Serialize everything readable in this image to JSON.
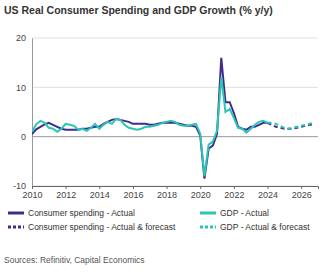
{
  "chart_data": {
    "type": "line",
    "title": "US Real Consumer Spending and GDP Growth (% y/y)",
    "source": "Sources: Refinitiv, Capital Economics",
    "x": [
      2010,
      2010.25,
      2010.5,
      2010.75,
      2011,
      2011.25,
      2011.5,
      2011.75,
      2012,
      2012.25,
      2012.5,
      2012.75,
      2013,
      2013.25,
      2013.5,
      2013.75,
      2014,
      2014.25,
      2014.5,
      2014.75,
      2015,
      2015.25,
      2015.5,
      2015.75,
      2016,
      2016.25,
      2016.5,
      2016.75,
      2017,
      2017.25,
      2017.5,
      2017.75,
      2018,
      2018.25,
      2018.5,
      2018.75,
      2019,
      2019.25,
      2019.5,
      2019.75,
      2020,
      2020.25,
      2020.5,
      2020.75,
      2021,
      2021.25,
      2021.5,
      2021.75,
      2022,
      2022.25,
      2022.5,
      2022.75,
      2023,
      2023.25,
      2023.5,
      2023.75,
      2024,
      2024.25,
      2024.5,
      2024.75,
      2025,
      2025.25,
      2025.5,
      2025.75,
      2026,
      2026.25,
      2026.5,
      2026.75
    ],
    "series": [
      {
        "name": "Consumer spending - Actual",
        "color": "#3d2c8d",
        "line_style": "solid",
        "values": [
          0.5,
          1.5,
          2.0,
          2.5,
          2.8,
          2.4,
          2.0,
          1.6,
          1.4,
          1.4,
          1.4,
          1.4,
          1.6,
          1.6,
          1.8,
          2.0,
          2.0,
          2.6,
          3.0,
          3.4,
          3.6,
          3.4,
          3.2,
          3.0,
          2.6,
          2.6,
          2.6,
          2.6,
          2.4,
          2.4,
          2.6,
          2.8,
          2.8,
          2.8,
          2.8,
          2.6,
          2.4,
          2.2,
          2.2,
          2.0,
          0.2,
          -8.5,
          -2.4,
          -1.8,
          0.6,
          16.0,
          7.0,
          7.0,
          4.8,
          2.0,
          1.6,
          1.4,
          2.0,
          2.0,
          2.4,
          2.8,
          2.8,
          null,
          null,
          null,
          null,
          null,
          null,
          null,
          null,
          null,
          null,
          null
        ]
      },
      {
        "name": "Consumer spending - Actual & forecast",
        "color": "#3d2c8d",
        "line_style": "dashed",
        "values": [
          null,
          null,
          null,
          null,
          null,
          null,
          null,
          null,
          null,
          null,
          null,
          null,
          null,
          null,
          null,
          null,
          null,
          null,
          null,
          null,
          null,
          null,
          null,
          null,
          null,
          null,
          null,
          null,
          null,
          null,
          null,
          null,
          null,
          null,
          null,
          null,
          null,
          null,
          null,
          null,
          null,
          null,
          null,
          null,
          null,
          null,
          null,
          null,
          null,
          null,
          null,
          null,
          null,
          null,
          null,
          null,
          2.8,
          2.4,
          2.0,
          1.8,
          1.6,
          1.6,
          1.6,
          1.8,
          2.0,
          2.2,
          2.4,
          2.5
        ]
      },
      {
        "name": "GDP - Actual",
        "color": "#2bc5b4",
        "line_style": "solid",
        "values": [
          1.0,
          2.5,
          3.2,
          2.8,
          1.8,
          1.6,
          1.0,
          1.6,
          2.6,
          2.4,
          2.2,
          1.4,
          1.6,
          1.2,
          1.8,
          2.6,
          1.6,
          2.4,
          3.0,
          2.6,
          3.6,
          3.4,
          2.4,
          1.8,
          1.6,
          1.4,
          1.6,
          2.0,
          2.0,
          2.2,
          2.4,
          2.8,
          3.0,
          3.2,
          3.0,
          2.4,
          2.2,
          2.2,
          2.4,
          2.6,
          0.6,
          -8.0,
          -1.6,
          -1.0,
          1.2,
          12.0,
          5.0,
          5.6,
          3.8,
          1.8,
          1.6,
          0.8,
          1.6,
          2.4,
          3.0,
          3.2,
          2.8,
          null,
          null,
          null,
          null,
          null,
          null,
          null,
          null,
          null,
          null,
          null
        ]
      },
      {
        "name": "GDP - Actual & forecast",
        "color": "#2bc5b4",
        "line_style": "dashed",
        "values": [
          null,
          null,
          null,
          null,
          null,
          null,
          null,
          null,
          null,
          null,
          null,
          null,
          null,
          null,
          null,
          null,
          null,
          null,
          null,
          null,
          null,
          null,
          null,
          null,
          null,
          null,
          null,
          null,
          null,
          null,
          null,
          null,
          null,
          null,
          null,
          null,
          null,
          null,
          null,
          null,
          null,
          null,
          null,
          null,
          null,
          null,
          null,
          null,
          null,
          null,
          null,
          null,
          null,
          null,
          null,
          null,
          2.8,
          2.8,
          2.6,
          2.2,
          1.8,
          1.6,
          1.8,
          2.0,
          2.2,
          2.4,
          2.6,
          2.8
        ]
      }
    ],
    "xlim": [
      2010,
      2027
    ],
    "xticks": [
      2010,
      2012,
      2014,
      2016,
      2018,
      2020,
      2022,
      2024,
      2026
    ],
    "ylim": [
      -10,
      20
    ],
    "yticks": [
      -10,
      0,
      10,
      20
    ],
    "grid": true,
    "legend": "bottom"
  }
}
